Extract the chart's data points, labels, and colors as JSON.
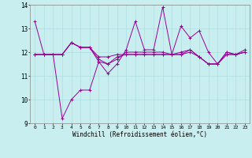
{
  "title": "",
  "xlabel": "Windchill (Refroidissement éolien,°C)",
  "background_color": "#c8eef0",
  "line_color": "#990099",
  "grid_color": "#b0dde0",
  "xlim": [
    -0.5,
    23.5
  ],
  "ylim": [
    9,
    14
  ],
  "yticks": [
    9,
    10,
    11,
    12,
    13,
    14
  ],
  "xticks": [
    0,
    1,
    2,
    3,
    4,
    5,
    6,
    7,
    8,
    9,
    10,
    11,
    12,
    13,
    14,
    15,
    16,
    17,
    18,
    19,
    20,
    21,
    22,
    23
  ],
  "series": [
    [
      13.3,
      11.9,
      11.9,
      11.9,
      12.4,
      12.2,
      12.2,
      11.6,
      11.1,
      11.5,
      12.1,
      13.3,
      12.1,
      12.1,
      13.9,
      11.9,
      13.1,
      12.6,
      12.9,
      12.0,
      11.5,
      12.0,
      11.9,
      12.1
    ],
    [
      11.9,
      11.9,
      11.9,
      11.9,
      12.4,
      12.2,
      12.2,
      11.8,
      11.8,
      11.9,
      11.9,
      11.9,
      11.9,
      11.9,
      11.9,
      11.9,
      12.0,
      12.1,
      11.8,
      11.5,
      11.5,
      11.9,
      11.9,
      12.0
    ],
    [
      11.9,
      11.9,
      11.9,
      9.2,
      10.0,
      10.4,
      10.4,
      11.6,
      11.5,
      11.8,
      11.9,
      11.9,
      11.9,
      11.9,
      11.9,
      11.9,
      11.9,
      12.1,
      11.8,
      11.5,
      11.5,
      11.9,
      11.9,
      12.0
    ],
    [
      11.9,
      11.9,
      11.9,
      11.9,
      12.4,
      12.2,
      12.2,
      11.7,
      11.5,
      11.7,
      12.0,
      12.0,
      12.0,
      12.0,
      12.0,
      11.9,
      11.9,
      12.0,
      11.8,
      11.5,
      11.5,
      12.0,
      11.9,
      12.0
    ]
  ]
}
